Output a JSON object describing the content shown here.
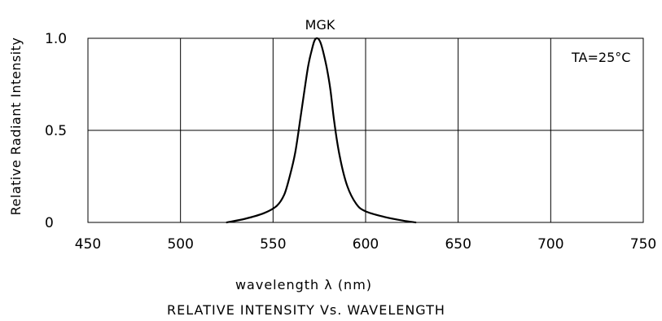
{
  "chart_data": {
    "type": "line",
    "title": "RELATIVE INTENSITY Vs. WAVELENGTH",
    "xlabel": "wavelength λ  (nm)",
    "ylabel": "Relative Radiant Intensity",
    "xlim": [
      450,
      750
    ],
    "ylim": [
      0,
      1.0
    ],
    "x_ticks": [
      "450",
      "500",
      "550",
      "600",
      "650",
      "700",
      "750"
    ],
    "x_tick_values": [
      450,
      500,
      550,
      600,
      650,
      700,
      750
    ],
    "y_ticks": [
      "0",
      "0.5",
      "1.0"
    ],
    "y_tick_values": [
      0,
      0.5,
      1.0
    ],
    "grid": true,
    "annotation": "TA=25°C",
    "series": [
      {
        "name": "MGK",
        "x": [
          525,
          535,
          545,
          552,
          556,
          559,
          562,
          565,
          567,
          569,
          571,
          572.5,
          574,
          575.5,
          577,
          579,
          581,
          583,
          586,
          590,
          595,
          600,
          610,
          620,
          627
        ],
        "y": [
          0.0,
          0.02,
          0.05,
          0.09,
          0.15,
          0.25,
          0.38,
          0.58,
          0.72,
          0.85,
          0.94,
          0.99,
          1.0,
          0.98,
          0.93,
          0.84,
          0.72,
          0.55,
          0.36,
          0.2,
          0.1,
          0.06,
          0.03,
          0.01,
          0.0
        ]
      }
    ]
  }
}
